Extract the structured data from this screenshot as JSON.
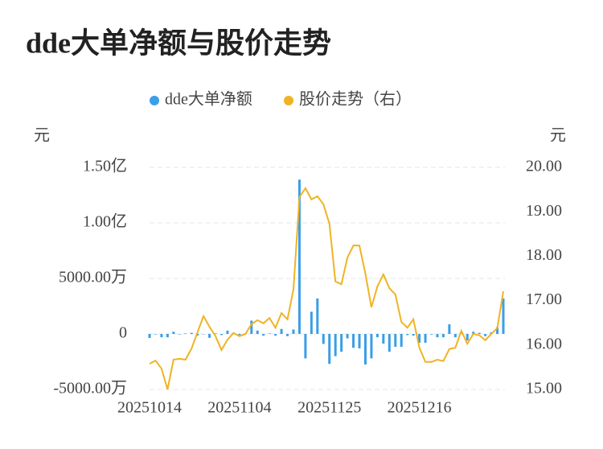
{
  "chart_data": {
    "type": "bar_line",
    "title": "dde大单净额与股价走势",
    "y_label": "元",
    "y2_label": "元",
    "categories": [
      "20251014",
      null,
      null,
      null,
      null,
      null,
      null,
      null,
      null,
      null,
      null,
      null,
      null,
      null,
      null,
      "20251104",
      null,
      null,
      null,
      null,
      null,
      null,
      null,
      null,
      null,
      null,
      null,
      null,
      null,
      null,
      "20251125",
      null,
      null,
      null,
      null,
      null,
      null,
      null,
      null,
      null,
      null,
      null,
      null,
      null,
      null,
      "20251216",
      null,
      null,
      null,
      null,
      null,
      null,
      null,
      null,
      null,
      null,
      null,
      null,
      null,
      null
    ],
    "series": [
      {
        "name": "dde大单净额",
        "type": "bar",
        "color": "#3a9ee8",
        "values": [
          -3600000,
          -500000,
          -3000000,
          -3000000,
          2000000,
          -500000,
          500000,
          1000000,
          -1500000,
          0,
          -3500000,
          500000,
          -1000000,
          3000000,
          1000000,
          -1000000,
          500000,
          12000000,
          3000000,
          -1500000,
          500000,
          -1500000,
          4500000,
          -2000000,
          4000000,
          139000000,
          -22000000,
          20000000,
          32000000,
          -9000000,
          -27000000,
          -20000000,
          -16000000,
          -4000000,
          -12500000,
          -13000000,
          -27500000,
          -22000000,
          -3000000,
          -8700000,
          -16000000,
          -11600000,
          -11600000,
          -1000000,
          -1500000,
          -8000000,
          -8000000,
          -500000,
          -3000000,
          -3000000,
          8700000,
          -3000000,
          1000000,
          -5800000,
          2000000,
          1000000,
          -2000000,
          1500000,
          6000000,
          32000000
        ]
      },
      {
        "name": "股价走势（右）",
        "type": "line",
        "axis": "y2",
        "color": "#f0b323",
        "values": [
          15.58,
          15.65,
          15.47,
          15.0,
          15.67,
          15.69,
          15.67,
          15.92,
          16.29,
          16.65,
          16.41,
          16.2,
          15.89,
          16.12,
          16.27,
          16.2,
          16.25,
          16.47,
          16.56,
          16.49,
          16.61,
          16.39,
          16.72,
          16.58,
          17.25,
          19.33,
          19.53,
          19.28,
          19.35,
          19.17,
          18.73,
          17.43,
          17.37,
          17.97,
          18.24,
          18.24,
          17.61,
          16.85,
          17.32,
          17.59,
          17.28,
          17.14,
          16.52,
          16.39,
          16.58,
          15.94,
          15.62,
          15.62,
          15.67,
          15.64,
          15.91,
          15.94,
          16.32,
          16.03,
          16.25,
          16.22,
          16.11,
          16.25,
          16.38,
          17.21
        ]
      }
    ],
    "ylim": [
      -50000000,
      150000000
    ],
    "yticks": [
      {
        "value": -50000000,
        "label": "-5000.00万"
      },
      0,
      {
        "value": 50000000,
        "label": "5000.00万"
      },
      {
        "value": 100000000,
        "label": "1.00亿"
      },
      {
        "value": 150000000,
        "label": "1.50亿"
      }
    ],
    "y2lim": [
      15,
      20
    ],
    "y2ticks": [
      {
        "value": 15,
        "label": "15.00"
      },
      {
        "value": 16,
        "label": "16.00"
      },
      {
        "value": 17,
        "label": "17.00"
      },
      {
        "value": 18,
        "label": "18.00"
      },
      {
        "value": 19,
        "label": "19.00"
      },
      {
        "value": 20,
        "label": "20.00"
      }
    ],
    "grid": true
  }
}
